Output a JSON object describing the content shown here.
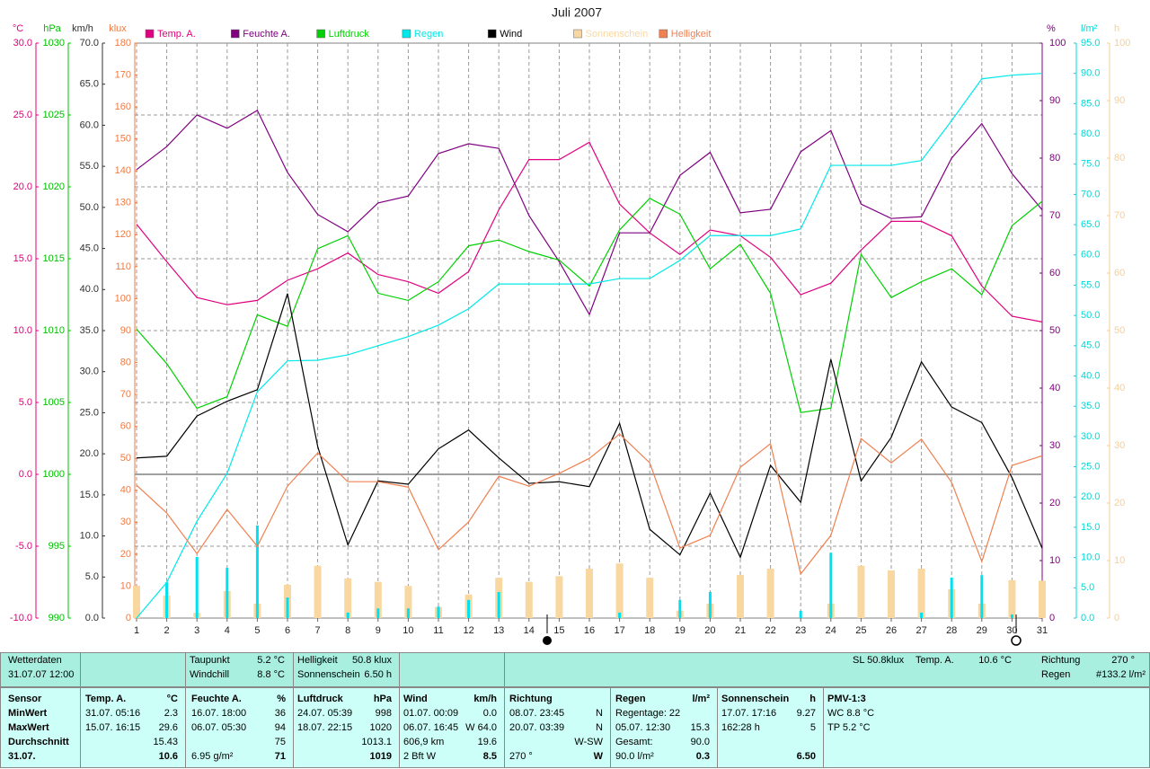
{
  "chart_data": {
    "type": "line",
    "title": "Juli 2007",
    "x": [
      1,
      2,
      3,
      4,
      5,
      6,
      7,
      8,
      9,
      10,
      11,
      12,
      13,
      14,
      15,
      16,
      17,
      18,
      19,
      20,
      21,
      22,
      23,
      24,
      25,
      26,
      27,
      28,
      29,
      30,
      31
    ],
    "xlim": [
      1,
      31
    ],
    "grid": true,
    "axes": {
      "temp": {
        "unit": "°C",
        "side": "left",
        "color": "#e0007f",
        "lim": [
          -10,
          30
        ],
        "ticks": [
          {
            "value": -10,
            "label": "-10.0"
          },
          {
            "value": -5,
            "label": "-5.0"
          },
          {
            "value": 0,
            "label": "0.0"
          },
          {
            "value": 5,
            "label": "5.0"
          },
          {
            "value": 10,
            "label": "10.0"
          },
          {
            "value": 15,
            "label": "15.0"
          },
          {
            "value": 20,
            "label": "20.0"
          },
          {
            "value": 25,
            "label": "25.0"
          },
          {
            "value": 30,
            "label": "30.0"
          }
        ]
      },
      "pressure": {
        "unit": "hPa",
        "side": "left",
        "color": "#00c000",
        "lim": [
          990,
          1030
        ],
        "ticks": [
          990,
          995,
          1000,
          1005,
          1010,
          1015,
          1020,
          1025,
          1030
        ]
      },
      "wind": {
        "unit": "km/h",
        "side": "left",
        "color": "#303030",
        "lim": [
          0,
          70
        ],
        "ticks": [
          {
            "value": 0,
            "label": "0.0"
          },
          {
            "value": 5,
            "label": "5.0"
          },
          {
            "value": 10,
            "label": "10.0"
          },
          {
            "value": 15,
            "label": "15.0"
          },
          {
            "value": 20,
            "label": "20.0"
          },
          {
            "value": 25,
            "label": "25.0"
          },
          {
            "value": 30,
            "label": "30.0"
          },
          {
            "value": 35,
            "label": "35.0"
          },
          {
            "value": 40,
            "label": "40.0"
          },
          {
            "value": 45,
            "label": "45.0"
          },
          {
            "value": 50,
            "label": "50.0"
          },
          {
            "value": 55,
            "label": "55.0"
          },
          {
            "value": 60,
            "label": "60.0"
          },
          {
            "value": 65,
            "label": "65.0"
          },
          {
            "value": 70,
            "label": "70.0"
          }
        ]
      },
      "light": {
        "unit": "klux",
        "side": "left",
        "color": "#f07a40",
        "lim": [
          0,
          180
        ],
        "ticks": [
          0,
          10,
          20,
          30,
          40,
          50,
          60,
          70,
          80,
          90,
          100,
          110,
          120,
          130,
          140,
          150,
          160,
          170,
          180
        ]
      },
      "humidity": {
        "unit": "%",
        "side": "right",
        "color": "#800080",
        "lim": [
          0,
          100
        ],
        "ticks": [
          0,
          10,
          20,
          30,
          40,
          50,
          60,
          70,
          80,
          90,
          100
        ]
      },
      "rain": {
        "unit": "l/m²",
        "side": "right",
        "color": "#00d8d8",
        "lim": [
          0,
          95
        ],
        "ticks": [
          {
            "value": 0,
            "label": "0.0"
          },
          {
            "value": 5,
            "label": "5.0"
          },
          {
            "value": 10,
            "label": "10.0"
          },
          {
            "value": 15,
            "label": "15.0"
          },
          {
            "value": 20,
            "label": "20.0"
          },
          {
            "value": 25,
            "label": "25.0"
          },
          {
            "value": 30,
            "label": "30.0"
          },
          {
            "value": 35,
            "label": "35.0"
          },
          {
            "value": 40,
            "label": "40.0"
          },
          {
            "value": 45,
            "label": "45.0"
          },
          {
            "value": 50,
            "label": "50.0"
          },
          {
            "value": 55,
            "label": "55.0"
          },
          {
            "value": 60,
            "label": "60.0"
          },
          {
            "value": 65,
            "label": "65.0"
          },
          {
            "value": 70,
            "label": "70.0"
          },
          {
            "value": 75,
            "label": "75.0"
          },
          {
            "value": 80,
            "label": "80.0"
          },
          {
            "value": 85,
            "label": "85.0"
          },
          {
            "value": 90,
            "label": "90.0"
          },
          {
            "value": 95,
            "label": "95.0"
          }
        ]
      },
      "sun": {
        "unit": "h",
        "side": "right",
        "color": "#f5cf98",
        "lim": [
          0,
          100
        ],
        "ticks": [
          0,
          10,
          20,
          30,
          40,
          50,
          60,
          70,
          80,
          90,
          100
        ]
      }
    },
    "series": [
      {
        "name": "Temp. A.",
        "color": "#e0007f",
        "axis": "temp",
        "values": [
          17.4,
          14.8,
          12.3,
          11.8,
          12.1,
          13.5,
          14.3,
          15.4,
          13.9,
          13.4,
          12.6,
          14.1,
          18.4,
          21.9,
          21.9,
          23.1,
          18.8,
          16.8,
          15.3,
          17.0,
          16.6,
          15.1,
          12.5,
          13.3,
          15.6,
          17.6,
          17.6,
          16.6,
          13.1,
          11.0,
          10.6
        ]
      },
      {
        "name": "Feuchte A.",
        "color": "#800080",
        "axis": "humidity",
        "values": [
          78,
          82,
          87.5,
          85.2,
          88.3,
          77.5,
          70.2,
          67.2,
          72.2,
          73.4,
          80.8,
          82.5,
          81.7,
          70,
          62,
          52.8,
          67,
          67,
          77,
          81,
          70.5,
          71.1,
          81.1,
          84.8,
          72,
          69.5,
          69.8,
          80,
          86,
          77.3,
          71
        ]
      },
      {
        "name": "Luftdruck",
        "color": "#00d000",
        "axis": "pressure",
        "values": [
          1010.1,
          1007.7,
          1004.6,
          1005.4,
          1011.1,
          1010.3,
          1015.7,
          1016.6,
          1012.6,
          1012.1,
          1013.4,
          1015.9,
          1016.3,
          1015.5,
          1014.9,
          1013.1,
          1017,
          1019.2,
          1018.1,
          1014.3,
          1016,
          1012.6,
          1004.3,
          1004.6,
          1015.3,
          1012.3,
          1013.4,
          1014.3,
          1012.5,
          1017.3,
          1019
        ]
      },
      {
        "name": "Regen",
        "color": "#00e8e8",
        "axis": "rain",
        "values": [
          0,
          5.9,
          16,
          23.9,
          37.4,
          42.5,
          42.6,
          43.5,
          45,
          46.5,
          48.4,
          51.1,
          55.2,
          55.2,
          55.2,
          55.2,
          56.1,
          56.1,
          59.1,
          63.2,
          63.2,
          63.2,
          64.3,
          74.8,
          74.8,
          74.8,
          75.6,
          82.2,
          89.1,
          89.7,
          90
        ]
      },
      {
        "name": "Wind",
        "color": "#000000",
        "axis": "wind",
        "values": [
          19.5,
          19.7,
          24.6,
          26.4,
          27.8,
          39.5,
          20.9,
          8.9,
          16.7,
          16.3,
          20.6,
          22.9,
          19.5,
          16.4,
          16.6,
          16,
          23.7,
          10.8,
          7.7,
          15.2,
          7.4,
          18.6,
          14.1,
          31.5,
          16.7,
          22,
          31.2,
          25.7,
          23.8,
          17.1,
          8.5
        ]
      },
      {
        "name": "Sonnenschein",
        "color": "#f8d8a0",
        "axis": "sun",
        "type": "bar",
        "values": [
          5.6,
          3.9,
          0.9,
          4.7,
          2.5,
          5.8,
          9.1,
          6.9,
          6.3,
          5.6,
          1.9,
          4.1,
          7,
          6.3,
          7.3,
          8.6,
          9.5,
          7,
          1.3,
          2.5,
          7.5,
          8.6,
          0,
          2.5,
          9.1,
          8.3,
          8.6,
          5,
          2.5,
          6.6,
          6.5
        ]
      },
      {
        "name": "Helligkeit",
        "color": "#f08050",
        "axis": "light",
        "values": [
          41.6,
          32.9,
          20.2,
          34,
          22.5,
          41.3,
          51.7,
          42.7,
          42.7,
          41,
          21.4,
          30.1,
          44.4,
          41.3,
          45.3,
          50,
          57.6,
          48.6,
          21.9,
          25.9,
          47.2,
          54.6,
          13.8,
          25.9,
          56.2,
          48.6,
          56,
          42.5,
          17.7,
          47.8,
          50.8
        ]
      },
      {
        "color": "#00e0f0",
        "axis": "rain",
        "type": "bar",
        "values": [
          0,
          5.9,
          10.1,
          8.3,
          15.3,
          3.4,
          0,
          0.9,
          1.6,
          1.6,
          1.9,
          3,
          4.3,
          0,
          0,
          0,
          0.9,
          0,
          3,
          4.3,
          0,
          0,
          1.2,
          10.8,
          0,
          0,
          0.9,
          6.7,
          7.1,
          0.6,
          0
        ]
      }
    ]
  },
  "info": {
    "station": "Wetterdaten",
    "datetime": "31.07.07 12:00",
    "taupunkt": [
      "Taupunkt",
      "5.2 °C"
    ],
    "windchill": [
      "Windchill",
      "8.8 °C"
    ],
    "helligkeit": [
      "Helligkeit",
      "50.8 klux"
    ],
    "sonnenschein": [
      "Sonnenschein",
      "6.50 h"
    ],
    "sl": "SL 50.8klux",
    "temp": [
      "Temp. A.",
      "10.6 °C"
    ],
    "richtung": [
      "Richtung",
      "270 °"
    ],
    "regen": [
      "Regen",
      "#133.2 l/m²"
    ]
  },
  "stats": {
    "sensor": [
      "Sensor",
      "MinWert",
      "MaxWert",
      "Durchschnitt",
      "31.07."
    ],
    "columns": [
      {
        "title": "Temp. A.",
        "unit": "°C",
        "rows": [
          [
            "31.07.  05:16",
            "2.3"
          ],
          [
            "15.07.  16:15",
            "29.6"
          ],
          [
            null,
            "15.43"
          ],
          [
            null,
            "10.6"
          ]
        ]
      },
      {
        "title": "Feuchte A.",
        "unit": "%",
        "rows": [
          [
            "16.07.  18:00",
            "36"
          ],
          [
            "06.07.  05:30",
            "94"
          ],
          [
            null,
            "75"
          ],
          [
            "6.95 g/m²",
            "71"
          ]
        ]
      },
      {
        "title": "Luftdruck",
        "unit": "hPa",
        "rows": [
          [
            "24.07.  05:39",
            "998"
          ],
          [
            "18.07.  22:15",
            "1020"
          ],
          [
            null,
            "1013.1"
          ],
          [
            null,
            "1019"
          ]
        ]
      },
      {
        "title": "Wind",
        "unit": "km/h",
        "rows": [
          [
            "01.07.  00:09",
            "0.0"
          ],
          [
            "06.07.  16:45",
            "W 64.0"
          ],
          [
            "606,9 km",
            "19.6"
          ],
          [
            "2 Bft W",
            "8.5"
          ]
        ]
      },
      {
        "title": "Richtung",
        "unit": null,
        "rows": [
          [
            "08.07.  23:45",
            "N"
          ],
          [
            "20.07.  03:39",
            "N"
          ],
          [
            null,
            "W-SW"
          ],
          [
            "270 °",
            "W"
          ]
        ]
      },
      {
        "title": "Regen",
        "unit": "l/m²",
        "rows": [
          [
            "Regentage: 22",
            null
          ],
          [
            "05.07.  12:30",
            "15.3"
          ],
          [
            "Gesamt:",
            "90.0"
          ],
          [
            "90.0 l/m²",
            "0.3"
          ]
        ]
      },
      {
        "title": "Sonnenschein",
        "unit": "h",
        "rows": [
          [
            "17.07.  17:16",
            "9.27"
          ],
          [
            "162:28 h",
            "5"
          ],
          [
            null,
            null
          ],
          [
            null,
            "6.50"
          ]
        ]
      },
      {
        "title": "PMV-1:3",
        "unit": null,
        "rows": [
          [
            "WC 8.8 °C",
            null
          ],
          [
            "TP 5.2 °C",
            null
          ],
          [
            null,
            null
          ],
          [
            null,
            null
          ]
        ]
      }
    ]
  }
}
